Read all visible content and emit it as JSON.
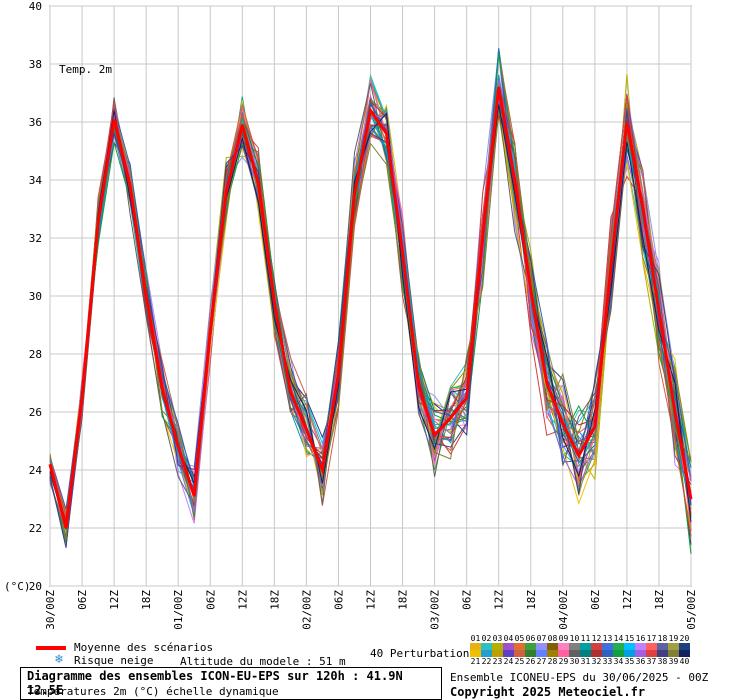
{
  "chart_data": {
    "type": "line",
    "title": "Temp. 2m",
    "ylabel": "(°C)",
    "ylim": [
      20,
      40
    ],
    "yticks": [
      20,
      22,
      24,
      26,
      28,
      30,
      32,
      34,
      36,
      38,
      40
    ],
    "x_tick_labels": [
      "30/00Z",
      "06Z",
      "12Z",
      "18Z",
      "01/00Z",
      "06Z",
      "12Z",
      "18Z",
      "02/00Z",
      "06Z",
      "12Z",
      "18Z",
      "03/00Z",
      "06Z",
      "12Z",
      "18Z",
      "04/00Z",
      "06Z",
      "12Z",
      "18Z",
      "05/00Z"
    ],
    "x_hours": [
      0,
      6,
      12,
      18,
      24,
      30,
      36,
      42,
      48,
      54,
      60,
      66,
      72,
      78,
      84,
      90,
      96,
      102,
      108,
      114,
      120
    ],
    "grid": true,
    "mean_series": {
      "name": "Moyenne des scénarios",
      "color": "#ff0000",
      "x": [
        0,
        3,
        6,
        9,
        12,
        15,
        18,
        21,
        24,
        27,
        30,
        33,
        36,
        39,
        42,
        45,
        48,
        51,
        54,
        57,
        60,
        63,
        66,
        69,
        72,
        75,
        78,
        81,
        84,
        87,
        90,
        93,
        96,
        99,
        102,
        105,
        108,
        111,
        114,
        117,
        120
      ],
      "y": [
        24.2,
        22.0,
        26.5,
        32.5,
        36.1,
        33.8,
        30.0,
        26.8,
        24.8,
        23.1,
        28.8,
        33.6,
        35.9,
        33.9,
        29.8,
        26.7,
        25.4,
        24.0,
        27.3,
        33.5,
        36.4,
        35.6,
        31.5,
        26.9,
        25.2,
        25.8,
        26.5,
        32.0,
        37.2,
        34.0,
        30.2,
        27.0,
        25.6,
        24.5,
        25.5,
        31.0,
        36.0,
        33.0,
        29.5,
        26.0,
        23.0
      ]
    },
    "perturbations_count": 40
  },
  "legend": {
    "mean_label": "Moyenne des scénarios",
    "snow_label": "Risque neige",
    "snow_icon": "snowflake-icon",
    "altitude_label": "Altitude du modele : 51 m",
    "perturbations_label": "40 Perturbations"
  },
  "footer": {
    "title": "Diagramme des ensembles ICON-EU-EPS sur 120h : 41.9N 12.5E",
    "subtitle": "Températures 2m (°C) échelle dynamique",
    "run_info": "Ensemble ICONEU-EPS du 30/06/2025 - 00Z",
    "copyright": "Copyright 2025 Meteociel.fr"
  },
  "perturbations": {
    "row1": [
      "01",
      "02",
      "03",
      "04",
      "05",
      "06",
      "07",
      "08",
      "09",
      "10",
      "11",
      "12",
      "13",
      "14",
      "15",
      "16",
      "17",
      "18",
      "19",
      "20"
    ],
    "row2": [
      "21",
      "22",
      "23",
      "24",
      "25",
      "26",
      "27",
      "28",
      "29",
      "30",
      "31",
      "32",
      "33",
      "34",
      "35",
      "36",
      "37",
      "38",
      "39",
      "40"
    ],
    "colors_row1": [
      "#e8b010",
      "#30c0c0",
      "#b0b000",
      "#a050d0",
      "#e07030",
      "#40a040",
      "#9090ff",
      "#806000",
      "#ff80c0",
      "#808080",
      "#00a0a0",
      "#d04040",
      "#4070e0",
      "#20b050",
      "#00c0ff",
      "#c080ff",
      "#ff6060",
      "#6060a0",
      "#a0a040",
      "#204080"
    ],
    "colors_row2": [
      "#f0c000",
      "#20a0d0",
      "#c0a000",
      "#6040c0",
      "#d06040",
      "#308030",
      "#6080ff",
      "#a08000",
      "#ff60a0",
      "#606060",
      "#008080",
      "#b03030",
      "#3060c0",
      "#10a040",
      "#00a0e0",
      "#a060e0",
      "#e04040",
      "#404080",
      "#808030",
      "#102060"
    ]
  }
}
